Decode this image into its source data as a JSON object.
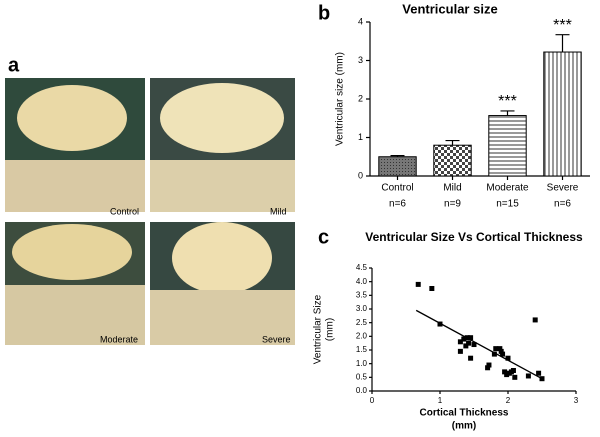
{
  "figure": {
    "panel_labels": [
      "a",
      "b",
      "c"
    ],
    "photo_captions": [
      "Control",
      "Mild",
      "Moderate",
      "Severe"
    ]
  },
  "chart_data": [
    {
      "type": "bar",
      "title": "Ventricular size",
      "y_label": "Ventricular size (mm)",
      "categories": [
        "Control",
        "Mild",
        "Moderate",
        "Severe"
      ],
      "sample_sizes": [
        "n=6",
        "n=9",
        "n=15",
        "n=6"
      ],
      "values": [
        0.5,
        0.8,
        1.57,
        3.22
      ],
      "errors": [
        0.03,
        0.12,
        0.12,
        0.45
      ],
      "annotations": [
        {
          "category": "Moderate",
          "text": "***"
        },
        {
          "category": "Severe",
          "text": "***"
        }
      ],
      "color": "#000000",
      "ylim": [
        0,
        4
      ],
      "yticks": [
        0,
        1,
        2,
        3,
        4
      ]
    },
    {
      "type": "scatter",
      "title": "Ventricular Size Vs Cortical Thickness",
      "x_label": [
        "Cortical Thickness",
        "(mm)"
      ],
      "y_label": [
        "Ventricular Size",
        "(mm)"
      ],
      "x": [
        0.68,
        0.88,
        1.0,
        1.3,
        1.35,
        1.4,
        1.45,
        1.38,
        1.42,
        1.45,
        1.3,
        1.5,
        1.7,
        1.72,
        1.8,
        1.82,
        1.88,
        1.92,
        1.95,
        1.98,
        2.0,
        2.02,
        2.05,
        2.08,
        2.1,
        2.3,
        2.4,
        2.45,
        2.5,
        1.9
      ],
      "y": [
        3.9,
        3.75,
        2.45,
        1.8,
        1.9,
        1.95,
        1.95,
        1.65,
        1.75,
        1.2,
        1.45,
        1.7,
        0.85,
        0.95,
        1.35,
        1.55,
        1.55,
        1.35,
        0.7,
        0.6,
        1.2,
        0.65,
        0.7,
        0.75,
        0.5,
        0.55,
        2.6,
        0.65,
        0.45,
        1.45
      ],
      "color": "#000000",
      "fit": {
        "x": [
          0.65,
          2.5
        ],
        "y": [
          2.95,
          0.45
        ]
      },
      "xlim": [
        0,
        3
      ],
      "xticks": [
        0,
        1,
        2,
        3
      ],
      "ylim": [
        0,
        4.5
      ],
      "yticks": [
        {
          "value": 0,
          "label": "0.0"
        },
        0.5,
        {
          "value": 1,
          "label": "1.0"
        },
        1.5,
        {
          "value": 2,
          "label": "2.0"
        },
        2.5,
        {
          "value": 3,
          "label": "3.0"
        },
        3.5,
        {
          "value": 4,
          "label": "4.0"
        },
        4.5
      ]
    }
  ]
}
